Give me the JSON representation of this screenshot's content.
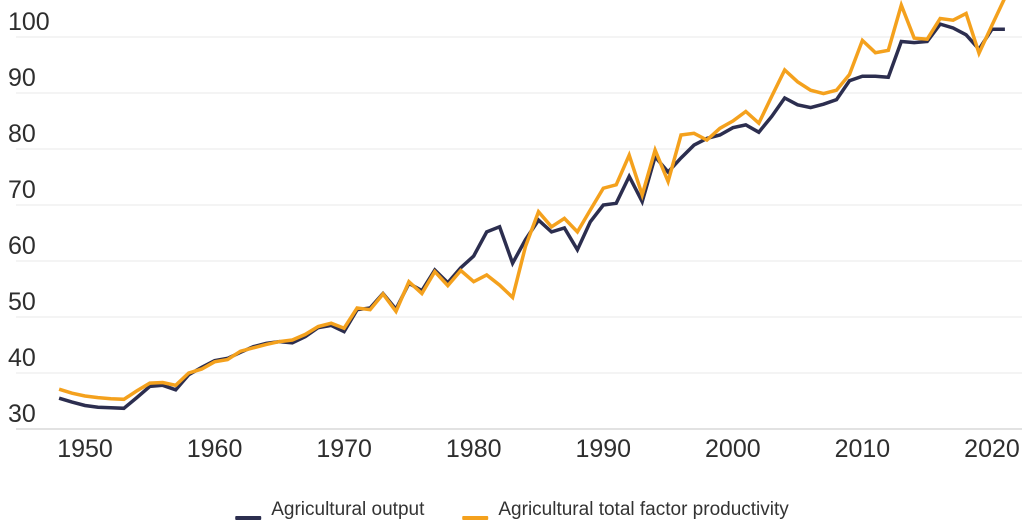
{
  "chart_data": {
    "type": "line",
    "title": "",
    "xlabel": "",
    "ylabel": "",
    "x_range": [
      1948,
      2021
    ],
    "ylim": [
      30,
      106.6
    ],
    "grid": "horizontal",
    "legend_position": "bottom",
    "x_ticks": [
      1950,
      1960,
      1970,
      1980,
      1990,
      2000,
      2010,
      2020
    ],
    "y_ticks": [
      100,
      90,
      80,
      70,
      60,
      50,
      40,
      30
    ],
    "x": [
      1948,
      1949,
      1950,
      1951,
      1952,
      1953,
      1954,
      1955,
      1956,
      1957,
      1958,
      1959,
      1960,
      1961,
      1962,
      1963,
      1964,
      1965,
      1966,
      1967,
      1968,
      1969,
      1970,
      1971,
      1972,
      1973,
      1974,
      1975,
      1976,
      1977,
      1978,
      1979,
      1980,
      1981,
      1982,
      1983,
      1984,
      1985,
      1986,
      1987,
      1988,
      1989,
      1990,
      1991,
      1992,
      1993,
      1994,
      1995,
      1996,
      1997,
      1998,
      1999,
      2000,
      2001,
      2002,
      2003,
      2004,
      2005,
      2006,
      2007,
      2008,
      2009,
      2010,
      2011,
      2012,
      2013,
      2014,
      2015,
      2016,
      2017,
      2018,
      2019,
      2020,
      2021
    ],
    "series": [
      {
        "name": "Agricultural output",
        "color": "#2c2e4f",
        "values": [
          35.5,
          34.8,
          34.2,
          33.9,
          33.8,
          33.7,
          35.6,
          37.6,
          37.8,
          37.0,
          39.7,
          41.0,
          42.2,
          42.6,
          43.7,
          44.7,
          45.3,
          45.6,
          45.4,
          46.5,
          48.1,
          48.5,
          47.4,
          51.3,
          51.6,
          54.2,
          51.4,
          56.0,
          54.7,
          58.4,
          56.1,
          58.8,
          60.9,
          65.2,
          66.1,
          59.6,
          63.8,
          67.3,
          65.2,
          65.9,
          62.0,
          67.0,
          70.0,
          70.3,
          75.1,
          70.6,
          78.6,
          75.9,
          78.4,
          80.7,
          81.9,
          82.5,
          83.8,
          84.3,
          83.0,
          85.8,
          89.1,
          87.9,
          87.4,
          88.0,
          88.8,
          92.2,
          93.0,
          93.0,
          92.8,
          99.2,
          99.0,
          99.2,
          102.3,
          101.6,
          100.4,
          97.8,
          101.4,
          101.4
        ]
      },
      {
        "name": "Agricultural total factor productivity",
        "color": "#f4a11d",
        "values": [
          37.1,
          36.4,
          35.9,
          35.6,
          35.4,
          35.3,
          36.8,
          38.2,
          38.3,
          37.8,
          40.0,
          40.7,
          42.0,
          42.4,
          43.9,
          44.5,
          45.1,
          45.6,
          45.9,
          46.9,
          48.3,
          48.9,
          48.0,
          51.6,
          51.3,
          54.1,
          51.0,
          56.3,
          54.2,
          58.1,
          55.6,
          58.3,
          56.3,
          57.5,
          55.7,
          53.5,
          62.6,
          68.8,
          66.1,
          67.6,
          65.2,
          69.1,
          73.0,
          73.6,
          78.9,
          71.8,
          79.8,
          74.2,
          82.5,
          82.8,
          81.6,
          83.7,
          85.0,
          86.7,
          84.6,
          89.4,
          94.1,
          92.0,
          90.5,
          89.9,
          90.5,
          93.3,
          99.4,
          97.2,
          97.6,
          105.7,
          99.8,
          99.6,
          103.3,
          103.0,
          104.2,
          97.1,
          102.1,
          107.0
        ]
      }
    ],
    "colors": {
      "gridline": "#e9e9e9",
      "axis_baseline": "#c4c4c4",
      "tick_label": "#2e2e2e",
      "legend_text": "#333333"
    }
  }
}
